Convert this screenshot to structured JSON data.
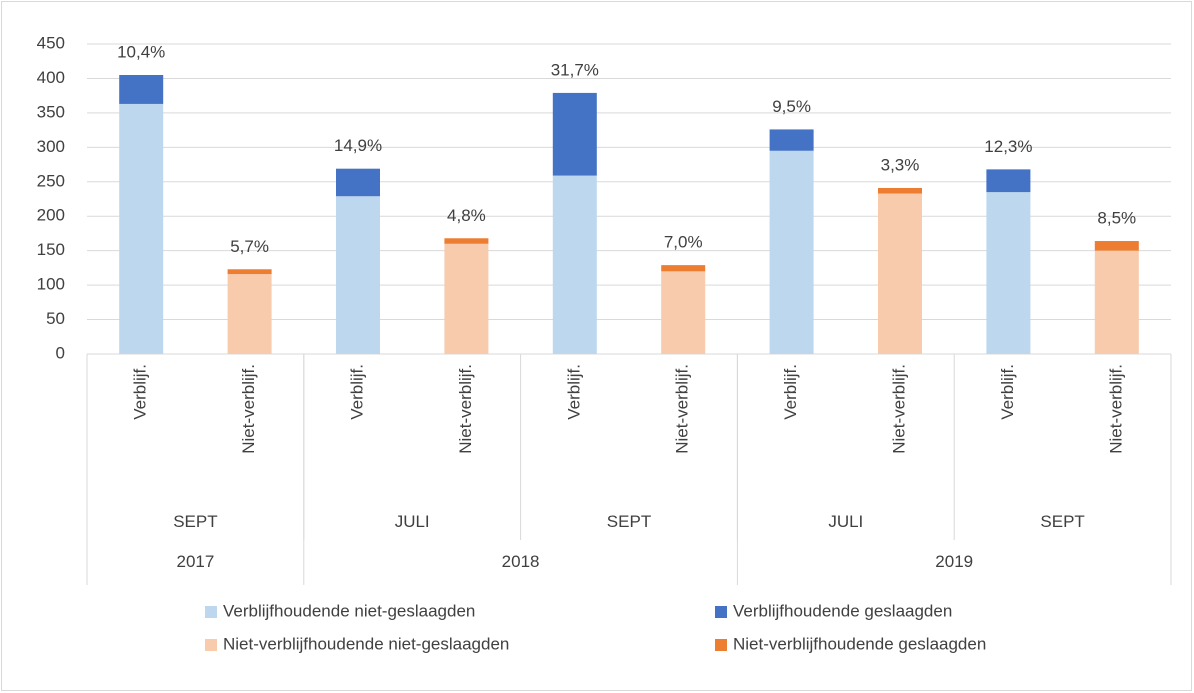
{
  "chart_data": {
    "type": "stacked_bar",
    "categories": [
      "Verblijf.",
      "Niet-verblijf.",
      "Verblijf.",
      "Niet-verblijf.",
      "Verblijf.",
      "Niet-verblijf.",
      "Verblijf.",
      "Niet-verblijf.",
      "Verblijf.",
      "Niet-verblijf."
    ],
    "category_month": [
      "SEPT",
      null,
      "JULI",
      null,
      "SEPT",
      null,
      "JULI",
      null,
      "SEPT",
      null
    ],
    "category_year": [
      "2017",
      null,
      "2018",
      null,
      null,
      null,
      "2019",
      null,
      null,
      null
    ],
    "series": [
      {
        "name": "Verblijfhoudende niet-geslaagden",
        "color": "#bdd7ee",
        "values": [
          363,
          null,
          229,
          null,
          259,
          null,
          295,
          null,
          235,
          null
        ]
      },
      {
        "name": "Verblijfhoudende geslaagden",
        "color": "#4472c4",
        "values": [
          42,
          null,
          40,
          null,
          120,
          null,
          31,
          null,
          33,
          null
        ]
      },
      {
        "name": "Niet-verblijfhoudende niet-geslaagden",
        "color": "#f8cbad",
        "values": [
          null,
          116,
          null,
          160,
          null,
          120,
          null,
          233,
          null,
          150
        ]
      },
      {
        "name": "Niet-verblijfhoudende geslaagden",
        "color": "#ed7d31",
        "values": [
          null,
          7,
          null,
          8,
          null,
          9,
          null,
          8,
          null,
          14
        ]
      }
    ],
    "annotations": [
      "10,4%",
      "5,7%",
      "14,9%",
      "4,8%",
      "31,7%",
      "7,0%",
      "9,5%",
      "3,3%",
      "12,3%",
      "8,5%"
    ],
    "ylim": [
      0,
      450
    ],
    "yticks": [
      0,
      50,
      100,
      150,
      200,
      250,
      300,
      350,
      400,
      450
    ],
    "grid": true
  }
}
